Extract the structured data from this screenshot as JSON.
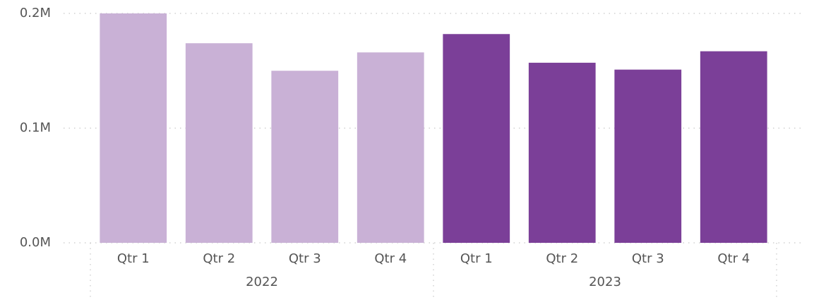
{
  "chart_data": {
    "type": "bar",
    "ylim": [
      0,
      200000
    ],
    "yticks": [
      {
        "value": 0,
        "label": "0.0M"
      },
      {
        "value": 100000,
        "label": "0.1M"
      },
      {
        "value": 200000,
        "label": "0.2M"
      }
    ],
    "grid": true,
    "series": [
      {
        "name": "2022",
        "color": "#c9b1d6",
        "categories": [
          "Qtr 1",
          "Qtr 2",
          "Qtr 3",
          "Qtr 4"
        ],
        "values": [
          200000,
          174000,
          150000,
          166000
        ]
      },
      {
        "name": "2023",
        "color": "#7b3f98",
        "categories": [
          "Qtr 1",
          "Qtr 2",
          "Qtr 3",
          "Qtr 4"
        ],
        "values": [
          182000,
          157000,
          151000,
          167000
        ]
      }
    ]
  }
}
